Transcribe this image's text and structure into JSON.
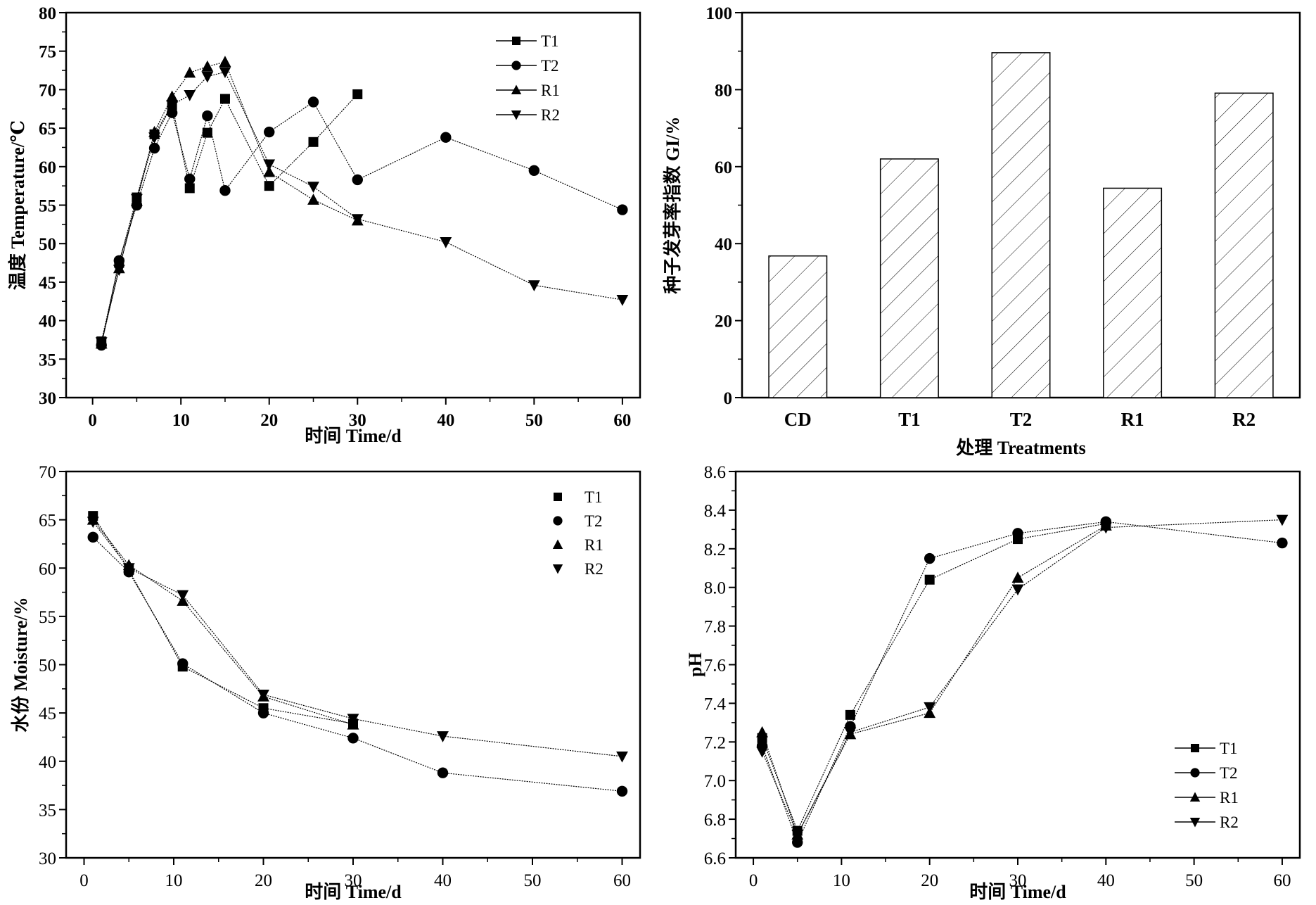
{
  "chart_data": [
    {
      "id": "temperature",
      "type": "line",
      "title": "",
      "xlabel": "时间  Time/d",
      "ylabel": "温度  Temperature/℃",
      "xlim": [
        -3,
        62
      ],
      "ylim": [
        30,
        80
      ],
      "xticks": [
        0,
        10,
        20,
        30,
        40,
        50,
        60
      ],
      "yticks": [
        30,
        35,
        40,
        45,
        50,
        55,
        60,
        65,
        70,
        75,
        80
      ],
      "legend_position": "top-right",
      "series": [
        {
          "name": "T1",
          "marker": "square",
          "x": [
            1,
            3,
            5,
            7,
            9,
            11,
            13,
            15,
            20,
            25,
            30
          ],
          "y": [
            37.3,
            47.5,
            56.0,
            64.2,
            68.0,
            57.2,
            64.4,
            68.8,
            57.5,
            63.2,
            69.4
          ]
        },
        {
          "name": "T2",
          "marker": "circle",
          "x": [
            1,
            3,
            5,
            7,
            9,
            11,
            13,
            15,
            20,
            25,
            30,
            40,
            50,
            60
          ],
          "y": [
            36.8,
            47.8,
            55.0,
            62.4,
            67.0,
            58.4,
            66.6,
            56.9,
            64.5,
            68.4,
            58.3,
            63.8,
            59.5,
            54.4
          ]
        },
        {
          "name": "R1",
          "marker": "triangle-up",
          "x": [
            1,
            3,
            5,
            7,
            9,
            11,
            13,
            15,
            20,
            25,
            30
          ],
          "y": [
            37.0,
            46.8,
            55.5,
            64.5,
            69.1,
            72.2,
            73.0,
            73.6,
            59.3,
            55.7,
            53.0
          ]
        },
        {
          "name": "R2",
          "marker": "triangle-down",
          "x": [
            1,
            3,
            5,
            7,
            9,
            11,
            13,
            15,
            20,
            25,
            30,
            40,
            50,
            60
          ],
          "y": [
            37.2,
            46.6,
            55.8,
            63.8,
            68.0,
            69.3,
            71.7,
            72.3,
            60.3,
            57.4,
            53.2,
            50.2,
            44.6,
            42.7
          ]
        }
      ]
    },
    {
      "id": "germination-index",
      "type": "bar",
      "title": "",
      "xlabel": "处理  Treatments",
      "ylabel": "种子发芽率指数  GI/%",
      "ylim": [
        0,
        100
      ],
      "yticks": [
        0,
        20,
        40,
        60,
        80,
        100
      ],
      "categories": [
        "CD",
        "T1",
        "T2",
        "R1",
        "R2"
      ],
      "values": [
        36.8,
        62.0,
        89.6,
        54.4,
        79.1
      ],
      "fill": "diagonal-hatch"
    },
    {
      "id": "moisture",
      "type": "line",
      "title": "",
      "xlabel": "时间  Time/d",
      "ylabel": "水份 Moisture/%",
      "xlim": [
        -2,
        62
      ],
      "ylim": [
        30,
        70
      ],
      "xticks": [
        0,
        10,
        20,
        30,
        40,
        50,
        60
      ],
      "yticks": [
        30,
        35,
        40,
        45,
        50,
        55,
        60,
        65,
        70
      ],
      "legend_position": "top-right",
      "series": [
        {
          "name": "T1",
          "marker": "square",
          "x": [
            1,
            5,
            11,
            20,
            30
          ],
          "y": [
            65.4,
            59.8,
            49.8,
            45.5,
            43.9
          ]
        },
        {
          "name": "T2",
          "marker": "circle",
          "x": [
            1,
            5,
            11,
            20,
            30,
            40,
            60
          ],
          "y": [
            63.2,
            59.6,
            50.1,
            45.0,
            42.4,
            38.8,
            36.9
          ]
        },
        {
          "name": "R1",
          "marker": "triangle-up",
          "x": [
            1,
            5,
            11,
            20,
            30
          ],
          "y": [
            65.0,
            60.3,
            56.6,
            46.7,
            43.8
          ]
        },
        {
          "name": "R2",
          "marker": "triangle-down",
          "x": [
            1,
            5,
            11,
            20,
            30,
            40,
            60
          ],
          "y": [
            64.8,
            60.0,
            57.2,
            46.9,
            44.4,
            42.6,
            40.5
          ]
        }
      ]
    },
    {
      "id": "ph",
      "type": "line",
      "title": "",
      "xlabel": "时间  Time/d",
      "ylabel": "pH",
      "xlim": [
        -2,
        62
      ],
      "ylim": [
        6.6,
        8.6
      ],
      "xticks": [
        0,
        10,
        20,
        30,
        40,
        50,
        60
      ],
      "yticks": [
        6.6,
        6.8,
        7.0,
        7.2,
        7.4,
        7.6,
        7.8,
        8.0,
        8.2,
        8.4,
        8.6
      ],
      "legend_position": "bottom-right",
      "series": [
        {
          "name": "T1",
          "marker": "square",
          "x": [
            1,
            5,
            11,
            20,
            30,
            40
          ],
          "y": [
            7.22,
            6.74,
            7.34,
            8.04,
            8.25,
            8.33
          ]
        },
        {
          "name": "T2",
          "marker": "circle",
          "x": [
            1,
            5,
            11,
            20,
            30,
            40,
            60
          ],
          "y": [
            7.18,
            6.68,
            7.28,
            8.15,
            8.28,
            8.34,
            8.23
          ]
        },
        {
          "name": "R1",
          "marker": "triangle-up",
          "x": [
            1,
            5,
            11,
            20,
            30,
            40
          ],
          "y": [
            7.25,
            6.72,
            7.24,
            7.35,
            8.05,
            8.32
          ]
        },
        {
          "name": "R2",
          "marker": "triangle-down",
          "x": [
            1,
            5,
            11,
            20,
            30,
            40,
            60
          ],
          "y": [
            7.15,
            6.72,
            7.25,
            7.38,
            7.99,
            8.31,
            8.35
          ]
        }
      ]
    }
  ],
  "colors": {
    "ink": "#000000",
    "background": "#ffffff"
  }
}
